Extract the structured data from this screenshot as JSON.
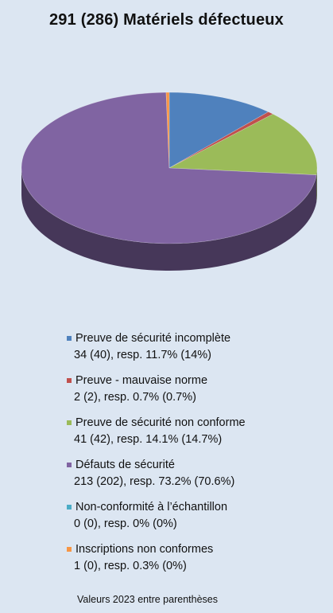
{
  "title": "291 (286) Matériels défectueux",
  "footnote": "Valeurs 2023 entre parenthèses",
  "chart_data": {
    "type": "pie",
    "title": "291 (286) Matériels défectueux",
    "total": 291,
    "total_prev": 286,
    "slices": [
      {
        "name": "Preuve de sécurité incomplète",
        "value": 34,
        "value_prev": 40,
        "percent": 11.7,
        "percent_prev": 14,
        "color": "#4f81bd",
        "value_text": "34 (40), resp. 11.7% (14%)"
      },
      {
        "name": "Preuve - mauvaise norme",
        "value": 2,
        "value_prev": 2,
        "percent": 0.7,
        "percent_prev": 0.7,
        "color": "#c0504d",
        "value_text": "2 (2), resp. 0.7% (0.7%)"
      },
      {
        "name": "Preuve de sécurité non conforme",
        "value": 41,
        "value_prev": 42,
        "percent": 14.1,
        "percent_prev": 14.7,
        "color": "#9bbb59",
        "value_text": "41 (42), resp. 14.1% (14.7%)"
      },
      {
        "name": "Défauts de sécurité",
        "value": 213,
        "value_prev": 202,
        "percent": 73.2,
        "percent_prev": 70.6,
        "color": "#8064a2",
        "value_text": "213 (202), resp. 73.2% (70.6%)"
      },
      {
        "name": "Non-conformité à l’échantillon",
        "value": 0,
        "value_prev": 0,
        "percent": 0,
        "percent_prev": 0,
        "color": "#4bacc6",
        "value_text": "0 (0), resp. 0% (0%)"
      },
      {
        "name": "Inscriptions non conformes",
        "value": 1,
        "value_prev": 0,
        "percent": 0.3,
        "percent_prev": 0,
        "color": "#f79646",
        "value_text": "1 (0), resp. 0.3% (0%)"
      }
    ],
    "legend_position": "bottom"
  }
}
